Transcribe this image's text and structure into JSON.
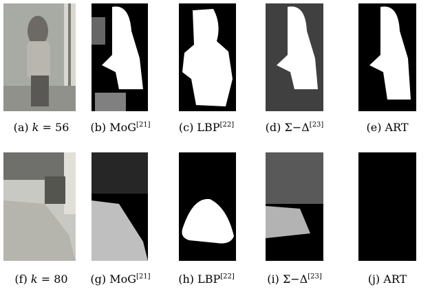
{
  "figure": {
    "rows": [
      {
        "panels": [
          {
            "label": "(a)",
            "var": "k",
            "text": "= 56"
          },
          {
            "label": "(b)",
            "text": "MoG",
            "sup": "[21]"
          },
          {
            "label": "(c)",
            "text": "LBP",
            "sup": "[22]"
          },
          {
            "label": "(d)",
            "text": "Σ−Δ",
            "sup": "[23]"
          },
          {
            "label": "(e)",
            "text": "ART"
          }
        ]
      },
      {
        "panels": [
          {
            "label": "(f)",
            "var": "k",
            "text": "= 80"
          },
          {
            "label": "(g)",
            "text": "MoG",
            "sup": "[21]"
          },
          {
            "label": "(h)",
            "text": "LBP",
            "sup": "[22]"
          },
          {
            "label": "(i)",
            "text": "Σ−Δ",
            "sup": "[23]"
          },
          {
            "label": "(j)",
            "text": "ART"
          }
        ]
      }
    ]
  }
}
